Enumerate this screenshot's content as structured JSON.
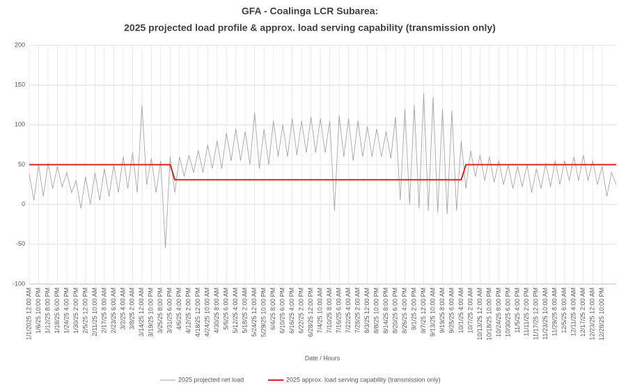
{
  "chart_data": {
    "type": "line",
    "title": "GFA - Coalinga LCR Subarea:",
    "subtitle": "2025 projected load profile & approx. load serving capability (transmission only)",
    "x_label": "Date / Hours",
    "categories": [
      "1/1/2025 12:00 AM",
      null,
      "1/6/25 10:00 PM",
      null,
      "1/12/25 8:00 PM",
      null,
      "1/18/25 6:00 PM",
      null,
      "1/24/25 4:00 PM",
      null,
      "1/30/25 2:00 PM",
      null,
      "2/5/25 12:00 PM",
      null,
      "2/11/25 10:00 AM",
      null,
      "2/17/25 8:00 AM",
      null,
      "2/23/25 6:00 AM",
      null,
      "3/2/25 4:00 AM",
      null,
      "3/8/25 2:00 AM",
      null,
      "3/14/25 12:00 AM",
      null,
      "3/19/25 10:00 PM",
      null,
      "3/25/25 8:00 PM",
      null,
      "3/31/25 6:00 PM",
      null,
      "4/6/25 4:00 PM",
      null,
      "4/12/25 2:00 PM",
      null,
      "4/18/25 12:00 PM",
      null,
      "4/24/25 10:00 AM",
      null,
      "4/30/25 8:00 AM",
      null,
      "5/6/25 6:00 AM",
      null,
      "5/12/25 4:00 AM",
      null,
      "5/18/25 2:00 AM",
      null,
      "5/24/25 12:00 AM",
      null,
      "5/29/25 10:00 PM",
      null,
      "6/4/25 8:00 PM",
      null,
      "6/10/25 6:00 PM",
      null,
      "6/16/25 4:00 PM",
      null,
      "6/22/25 2:00 PM",
      null,
      "6/28/25 12:00 PM",
      null,
      "7/4/25 10:00 AM",
      null,
      "7/10/25 8:00 AM",
      null,
      "7/16/25 6:00 AM",
      null,
      "7/22/25 4:00 AM",
      null,
      "7/28/25 2:00 AM",
      null,
      "8/3/25 12:00 AM",
      null,
      "8/8/25 10:00 PM",
      null,
      "8/14/25 8:00 PM",
      null,
      "8/20/25 6:00 PM",
      null,
      "8/26/25 4:00 PM",
      null,
      "9/1/25 2:00 PM",
      null,
      "9/7/25 12:00 PM",
      null,
      "9/13/25 10:00 AM",
      null,
      "9/19/25 8:00 AM",
      null,
      "9/25/25 6:00 AM",
      null,
      "10/1/25 4:00 AM",
      null,
      "10/7/25 2:00 AM",
      null,
      "10/13/25 12:00 AM",
      null,
      "10/18/25 10:00 PM",
      null,
      "10/24/25 8:00 PM",
      null,
      "10/30/25 6:00 PM",
      null,
      "11/5/25 4:00 PM",
      null,
      "11/11/25 2:00 PM",
      null,
      "11/17/25 12:00 PM",
      null,
      "11/23/25 10:00 AM",
      null,
      "11/29/25 8:00 AM",
      null,
      "12/5/25 6:00 AM",
      null,
      "12/11/25 4:00 AM",
      null,
      "12/17/25 2:00 AM",
      null,
      "12/23/25 12:00 AM",
      null,
      "12/28/25 10:00 PM",
      null,
      null,
      null
    ],
    "series": [
      {
        "name": "2025 projected net load",
        "color": "#a6a6a6",
        "values": [
          38,
          5,
          50,
          10,
          52,
          20,
          48,
          22,
          40,
          15,
          30,
          -5,
          35,
          0,
          40,
          5,
          45,
          10,
          50,
          15,
          60,
          20,
          65,
          15,
          125,
          25,
          58,
          15,
          55,
          -55,
          60,
          15,
          60,
          35,
          62,
          40,
          68,
          40,
          75,
          45,
          80,
          45,
          90,
          55,
          95,
          55,
          92,
          50,
          115,
          45,
          95,
          50,
          105,
          60,
          100,
          60,
          108,
          62,
          105,
          65,
          110,
          65,
          108,
          65,
          105,
          -8,
          112,
          60,
          108,
          55,
          105,
          60,
          98,
          60,
          95,
          60,
          92,
          58,
          110,
          5,
          120,
          0,
          125,
          -5,
          140,
          -8,
          135,
          -10,
          120,
          -12,
          118,
          -8,
          80,
          20,
          68,
          35,
          62,
          30,
          60,
          28,
          55,
          25,
          50,
          20,
          48,
          22,
          50,
          15,
          45,
          20,
          52,
          22,
          55,
          25,
          55,
          30,
          60,
          30,
          62,
          30,
          55,
          25,
          48,
          10,
          40,
          25
        ]
      },
      {
        "name": "2025 approx. load serving capability (transmission only)",
        "color": "#e02020",
        "values": [
          50,
          50,
          50,
          50,
          50,
          50,
          50,
          50,
          50,
          50,
          50,
          50,
          50,
          50,
          50,
          50,
          50,
          50,
          50,
          50,
          50,
          50,
          50,
          50,
          50,
          50,
          50,
          50,
          50,
          50,
          50,
          31,
          31,
          31,
          31,
          31,
          31,
          31,
          31,
          31,
          31,
          31,
          31,
          31,
          31,
          31,
          31,
          31,
          31,
          31,
          31,
          31,
          31,
          31,
          31,
          31,
          31,
          31,
          31,
          31,
          31,
          31,
          31,
          31,
          31,
          31,
          31,
          31,
          31,
          31,
          31,
          31,
          31,
          31,
          31,
          31,
          31,
          31,
          31,
          31,
          31,
          31,
          31,
          31,
          31,
          31,
          31,
          31,
          31,
          31,
          31,
          31,
          31,
          50,
          50,
          50,
          50,
          50,
          50,
          50,
          50,
          50,
          50,
          50,
          50,
          50,
          50,
          50,
          50,
          50,
          50,
          50,
          50,
          50,
          50,
          50,
          50,
          50,
          50,
          50,
          50,
          50,
          50,
          50,
          50,
          50
        ]
      }
    ],
    "ylim": [
      -100,
      200
    ],
    "yticks": [
      200,
      150,
      100,
      50,
      0,
      -50,
      -100
    ],
    "grid": true,
    "legend": "bottom"
  }
}
